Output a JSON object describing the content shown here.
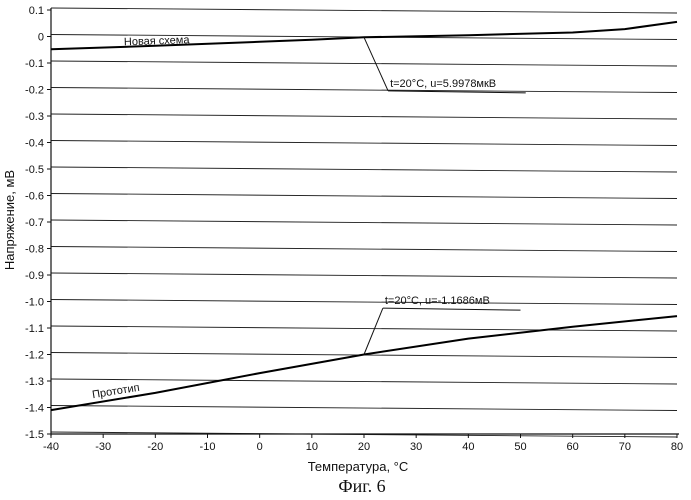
{
  "chart_data": {
    "type": "line",
    "xlabel": "Температура, °C",
    "ylabel": "Напряжение, мВ",
    "caption": "Фиг. 6",
    "xlim": [
      -40,
      80
    ],
    "ylim": [
      -1.5,
      0.1
    ],
    "grid": "horizontal",
    "x_ticks": [
      "-40",
      "-30",
      "-20",
      "-10",
      "0",
      "10",
      "20",
      "30",
      "40",
      "50",
      "60",
      "70",
      "80"
    ],
    "y_ticks": [
      "0.1",
      "0",
      "-0.1",
      "-0.2",
      "-0.3",
      "-0.4",
      "-0.5",
      "-0.6",
      "-0.7",
      "-0.8",
      "-0.9",
      "-1.0",
      "-1.1",
      "-1.2",
      "-1.3",
      "-1.4",
      "-1.5"
    ],
    "series": [
      {
        "name": "Новая схема",
        "x": [
          -40,
          -20,
          0,
          10,
          20,
          40,
          60,
          70,
          80
        ],
        "y": [
          -0.048,
          -0.035,
          -0.02,
          -0.012,
          -0.003,
          0.005,
          0.015,
          0.028,
          0.055
        ]
      },
      {
        "name": "Прототип",
        "x": [
          -40,
          -20,
          0,
          20,
          40,
          60,
          80
        ],
        "y": [
          -1.41,
          -1.345,
          -1.27,
          -1.2,
          -1.14,
          -1.095,
          -1.055
        ]
      }
    ],
    "annotations": [
      {
        "text": "t=20°C, u=5.9978мкВ",
        "x": 20,
        "y": -0.003
      },
      {
        "text": "t=20°C, u=-1.1686мВ",
        "x": 20,
        "y": -1.2
      }
    ]
  }
}
